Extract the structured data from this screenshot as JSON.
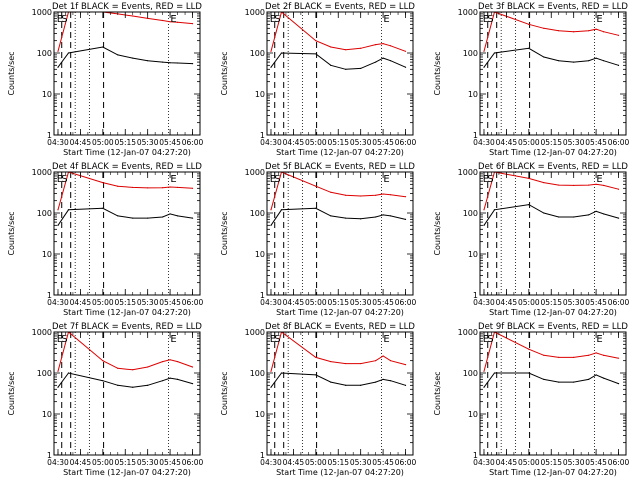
{
  "figure": {
    "xlabel": "Start Time (12-Jan-07 04:27:20)",
    "ylabel": "Counts/sec",
    "x_tick_labels": [
      "04:30",
      "04:45",
      "05:00",
      "05:15",
      "05:30",
      "05:45",
      "06:00"
    ],
    "y_tick_labels": [
      "1",
      "10",
      "100",
      "1000"
    ]
  },
  "chart_data": [
    {
      "type": "line",
      "title": "Det 1f BLACK = Events, RED = LLD",
      "xlabel": "Start Time (12-Jan-07 04:27:20)",
      "ylabel": "Counts/sec",
      "xlim": [
        "04:27:20",
        "06:05"
      ],
      "ylim": [
        1,
        1000
      ],
      "yscale": "log",
      "x": [
        "04:30",
        "04:37",
        "05:00",
        "05:10",
        "05:20",
        "05:30",
        "05:40",
        "05:45",
        "05:50",
        "06:00"
      ],
      "series": [
        {
          "name": "Events",
          "color": "#000000",
          "values": [
            45,
            100,
            140,
            90,
            75,
            65,
            60,
            58,
            57,
            55
          ]
        },
        {
          "name": "LLD",
          "color": "#dd0000",
          "values": [
            110,
            1000,
            1000,
            900,
            800,
            700,
            620,
            580,
            560,
            520
          ]
        }
      ],
      "annotations": [
        "E",
        "S",
        "E"
      ]
    },
    {
      "type": "line",
      "title": "Det 2f BLACK = Events, RED = LLD",
      "xlabel": "Start Time (12-Jan-07 04:27:20)",
      "ylabel": "Counts/sec",
      "xlim": [
        "04:27:20",
        "06:05"
      ],
      "ylim": [
        1,
        1000
      ],
      "yscale": "log",
      "x": [
        "04:30",
        "04:37",
        "05:00",
        "05:10",
        "05:20",
        "05:30",
        "05:40",
        "05:45",
        "05:50",
        "06:00"
      ],
      "series": [
        {
          "name": "Events",
          "color": "#000000",
          "values": [
            45,
            100,
            95,
            50,
            40,
            42,
            60,
            75,
            65,
            45
          ]
        },
        {
          "name": "LLD",
          "color": "#dd0000",
          "values": [
            110,
            1000,
            200,
            140,
            120,
            130,
            160,
            170,
            150,
            110
          ]
        }
      ],
      "annotations": [
        "E",
        "S",
        "E"
      ]
    },
    {
      "type": "line",
      "title": "Det 3f BLACK = Events, RED = LLD",
      "xlabel": "Start Time (12-Jan-07 04:27:20)",
      "ylabel": "Counts/sec",
      "xlim": [
        "04:27:20",
        "06:05"
      ],
      "ylim": [
        1,
        1000
      ],
      "yscale": "log",
      "x": [
        "04:30",
        "04:37",
        "05:00",
        "05:10",
        "05:20",
        "05:30",
        "05:40",
        "05:45",
        "05:50",
        "06:00"
      ],
      "series": [
        {
          "name": "Events",
          "color": "#000000",
          "values": [
            45,
            100,
            130,
            80,
            65,
            60,
            65,
            75,
            65,
            50
          ]
        },
        {
          "name": "LLD",
          "color": "#dd0000",
          "values": [
            110,
            1000,
            500,
            400,
            350,
            330,
            350,
            380,
            330,
            270
          ]
        }
      ],
      "annotations": [
        "E",
        "S",
        "E"
      ]
    },
    {
      "type": "line",
      "title": "Det 4f BLACK = Events, RED = LLD",
      "xlabel": "Start Time (12-Jan-07 04:27:20)",
      "ylabel": "Counts/sec",
      "xlim": [
        "04:27:20",
        "06:05"
      ],
      "ylim": [
        1,
        1000
      ],
      "yscale": "log",
      "x": [
        "04:30",
        "04:37",
        "05:00",
        "05:10",
        "05:20",
        "05:30",
        "05:40",
        "05:45",
        "05:50",
        "06:00"
      ],
      "series": [
        {
          "name": "Events",
          "color": "#000000",
          "values": [
            50,
            120,
            130,
            85,
            75,
            75,
            80,
            95,
            85,
            75
          ]
        },
        {
          "name": "LLD",
          "color": "#dd0000",
          "values": [
            120,
            1000,
            550,
            450,
            420,
            410,
            415,
            430,
            420,
            400
          ]
        }
      ],
      "annotations": [
        "E",
        "S",
        "E"
      ]
    },
    {
      "type": "line",
      "title": "Det 5f BLACK = Events, RED = LLD",
      "xlabel": "Start Time (12-Jan-07 04:27:20)",
      "ylabel": "Counts/sec",
      "xlim": [
        "04:27:20",
        "06:05"
      ],
      "ylim": [
        1,
        1000
      ],
      "yscale": "log",
      "x": [
        "04:30",
        "04:37",
        "05:00",
        "05:10",
        "05:20",
        "05:30",
        "05:40",
        "05:45",
        "05:50",
        "06:00"
      ],
      "series": [
        {
          "name": "Events",
          "color": "#000000",
          "values": [
            50,
            120,
            130,
            85,
            75,
            72,
            80,
            90,
            85,
            70
          ]
        },
        {
          "name": "LLD",
          "color": "#dd0000",
          "values": [
            120,
            1000,
            450,
            320,
            270,
            260,
            270,
            290,
            280,
            250
          ]
        }
      ],
      "annotations": [
        "E",
        "S",
        "E"
      ]
    },
    {
      "type": "line",
      "title": "Det 6f BLACK = Events, RED = LLD",
      "xlabel": "Start Time (12-Jan-07 04:27:20)",
      "ylabel": "Counts/sec",
      "xlim": [
        "04:27:20",
        "06:05"
      ],
      "ylim": [
        1,
        1000
      ],
      "yscale": "log",
      "x": [
        "04:30",
        "04:37",
        "05:00",
        "05:10",
        "05:20",
        "05:30",
        "05:40",
        "05:45",
        "05:50",
        "06:00"
      ],
      "series": [
        {
          "name": "Events",
          "color": "#000000",
          "values": [
            50,
            120,
            160,
            100,
            80,
            80,
            90,
            110,
            95,
            75
          ]
        },
        {
          "name": "LLD",
          "color": "#dd0000",
          "values": [
            120,
            1000,
            700,
            550,
            480,
            470,
            480,
            500,
            470,
            380
          ]
        }
      ],
      "annotations": [
        "E",
        "S",
        "E"
      ]
    },
    {
      "type": "line",
      "title": "Det 7f BLACK = Events, RED = LLD",
      "xlabel": "Start Time (12-Jan-07 04:27:20)",
      "ylabel": "Counts/sec",
      "xlim": [
        "04:27:20",
        "06:05"
      ],
      "ylim": [
        1,
        1000
      ],
      "yscale": "log",
      "x": [
        "04:30",
        "04:37",
        "05:00",
        "05:10",
        "05:20",
        "05:30",
        "05:40",
        "05:45",
        "05:50",
        "06:00"
      ],
      "series": [
        {
          "name": "Events",
          "color": "#000000",
          "values": [
            45,
            100,
            65,
            50,
            45,
            50,
            65,
            75,
            70,
            55
          ]
        },
        {
          "name": "LLD",
          "color": "#dd0000",
          "values": [
            110,
            1000,
            200,
            130,
            120,
            140,
            190,
            210,
            190,
            140
          ]
        }
      ],
      "annotations": [
        "E",
        "S",
        "E"
      ]
    },
    {
      "type": "line",
      "title": "Det 8f BLACK = Events, RED = LLD",
      "xlabel": "Start Time (12-Jan-07 04:27:20)",
      "ylabel": "Counts/sec",
      "xlim": [
        "04:27:20",
        "06:05"
      ],
      "ylim": [
        1,
        1000
      ],
      "yscale": "log",
      "x": [
        "04:30",
        "04:37",
        "05:00",
        "05:10",
        "05:20",
        "05:30",
        "05:40",
        "05:45",
        "05:50",
        "06:00"
      ],
      "series": [
        {
          "name": "Events",
          "color": "#000000",
          "values": [
            45,
            100,
            90,
            60,
            50,
            50,
            60,
            70,
            65,
            50
          ]
        },
        {
          "name": "LLD",
          "color": "#dd0000",
          "values": [
            110,
            1000,
            240,
            190,
            170,
            170,
            200,
            260,
            200,
            160
          ]
        }
      ],
      "annotations": [
        "E",
        "S",
        "E"
      ]
    },
    {
      "type": "line",
      "title": "Det 9f BLACK = Events, RED = LLD",
      "xlabel": "Start Time (12-Jan-07 04:27:20)",
      "ylabel": "Counts/sec",
      "xlim": [
        "04:27:20",
        "06:05"
      ],
      "ylim": [
        1,
        1000
      ],
      "yscale": "log",
      "x": [
        "04:30",
        "04:37",
        "05:00",
        "05:10",
        "05:20",
        "05:30",
        "05:40",
        "05:45",
        "05:50",
        "06:00"
      ],
      "series": [
        {
          "name": "Events",
          "color": "#000000",
          "values": [
            45,
            100,
            100,
            70,
            60,
            60,
            70,
            90,
            75,
            55
          ]
        },
        {
          "name": "LLD",
          "color": "#dd0000",
          "values": [
            110,
            1000,
            380,
            270,
            240,
            240,
            270,
            310,
            270,
            230
          ]
        }
      ],
      "annotations": [
        "E",
        "S",
        "E"
      ]
    }
  ]
}
